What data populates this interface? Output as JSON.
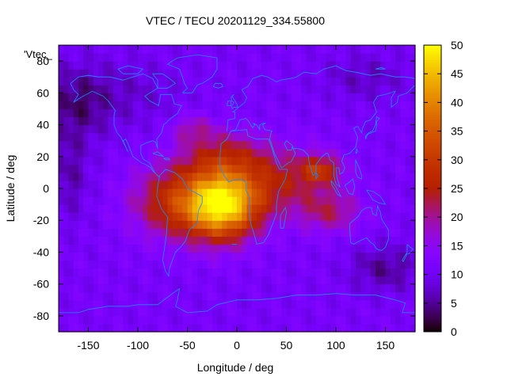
{
  "chart_data": {
    "type": "heatmap",
    "title": "VTEC / TECU 20201129_334.55800",
    "xlabel": "Longitude / deg",
    "ylabel": "Latitude / deg",
    "legend_label": "'Vtec_",
    "legend_position": "top-left",
    "xlim": [
      -180,
      180
    ],
    "ylim": [
      -90,
      90
    ],
    "x_ticks": [
      "-150",
      "-100",
      "-50",
      "0",
      "50",
      "100",
      "150"
    ],
    "x_tick_values": [
      -150,
      -100,
      -50,
      0,
      50,
      100,
      150
    ],
    "y_ticks": [
      "80",
      "60",
      "40",
      "20",
      "0",
      "-20",
      "-40",
      "-60",
      "-80"
    ],
    "y_tick_values": [
      80,
      60,
      40,
      20,
      0,
      -20,
      -40,
      -60,
      -80
    ],
    "colorbar": {
      "min": 0,
      "max": 50,
      "ticks": [
        "0",
        "5",
        "10",
        "15",
        "20",
        "25",
        "30",
        "35",
        "40",
        "45",
        "50"
      ],
      "tick_values": [
        0,
        5,
        10,
        15,
        20,
        25,
        30,
        35,
        40,
        45,
        50
      ],
      "palette": "black-blue-purple-red-orange-yellow"
    },
    "grid": false,
    "cell_size_deg": {
      "lon": 5,
      "lat": 5
    },
    "field_features": [
      {
        "name": "peak",
        "lon": -15,
        "lat": -10,
        "value": 48
      },
      {
        "name": "crest-west",
        "lon": -70,
        "lat": -5,
        "value": 28
      },
      {
        "name": "crest-east",
        "lon": 45,
        "lat": 5,
        "value": 26
      },
      {
        "name": "eastern-band",
        "lon": 85,
        "lat": 12,
        "value": 26
      },
      {
        "name": "low-north-pacific",
        "lon": -160,
        "lat": 55,
        "value": 3
      },
      {
        "name": "low-south-pacific",
        "lon": 150,
        "lat": -50,
        "value": 3
      }
    ]
  }
}
